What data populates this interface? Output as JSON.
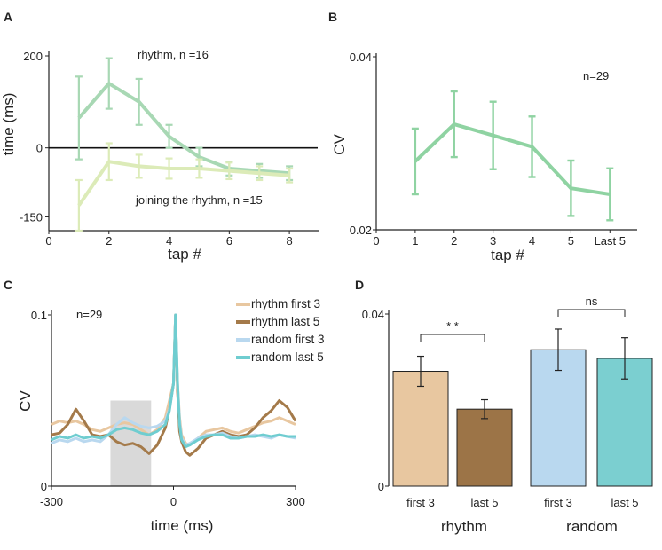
{
  "chart_data": [
    {
      "panel": "A",
      "type": "line",
      "xlabel": "tap #",
      "ylabel": "time (ms)",
      "xlim": [
        0,
        9
      ],
      "ylim": [
        -180,
        200
      ],
      "x_ticks": [
        "0",
        "2",
        "4",
        "6",
        "8"
      ],
      "x_tick_values": [
        0,
        2,
        4,
        6,
        8
      ],
      "y_ticks": [
        "200",
        "0",
        "-150"
      ],
      "y_tick_values": [
        200,
        0,
        -150
      ],
      "reference_line": 0,
      "series": [
        {
          "name": "rhythm, n =16",
          "color": "#a8d8b4",
          "x": [
            1,
            2,
            3,
            4,
            5,
            6,
            7,
            8
          ],
          "y": [
            65,
            140,
            100,
            25,
            -20,
            -45,
            -50,
            -55
          ],
          "err": [
            90,
            55,
            50,
            25,
            20,
            15,
            15,
            15
          ]
        },
        {
          "name": "joining the rhythm, n =15",
          "color": "#dcebb8",
          "x": [
            1,
            2,
            3,
            4,
            5,
            6,
            7,
            8
          ],
          "y": [
            -125,
            -30,
            -40,
            -45,
            -45,
            -50,
            -55,
            -60
          ],
          "err": [
            55,
            40,
            25,
            22,
            20,
            18,
            15,
            15
          ]
        }
      ]
    },
    {
      "panel": "B",
      "type": "line",
      "xlabel": "tap #",
      "ylabel": "CV",
      "annotation": "n=29",
      "ylim": [
        0.02,
        0.04
      ],
      "y_ticks": [
        "0.04",
        "0.02"
      ],
      "y_tick_values": [
        0.04,
        0.02
      ],
      "x_ticks": [
        "0",
        "1",
        "2",
        "3",
        "4",
        "5",
        "Last 5"
      ],
      "x_tick_values": [
        0,
        1,
        2,
        3,
        4,
        5,
        6
      ],
      "xlim": [
        0,
        6.7
      ],
      "color": "#8fd3a2",
      "x": [
        1,
        2,
        3,
        4,
        5,
        6
      ],
      "y": [
        0.0279,
        0.0322,
        0.0309,
        0.0296,
        0.0248,
        0.0241
      ],
      "err": [
        0.0038,
        0.0038,
        0.0039,
        0.0035,
        0.0032,
        0.003
      ]
    },
    {
      "panel": "C",
      "type": "line",
      "xlabel": "time (ms)",
      "ylabel": "CV",
      "annotation": "n=29",
      "xlim": [
        -300,
        300
      ],
      "ylim": [
        0,
        0.1
      ],
      "x_ticks": [
        "-300",
        "0",
        "300"
      ],
      "x_tick_values": [
        -300,
        0,
        300
      ],
      "y_ticks": [
        "0.1",
        "0"
      ],
      "y_tick_values": [
        0.1,
        0
      ],
      "shaded_window": [
        -155,
        -55
      ],
      "series": [
        {
          "name": "rhythm first 3",
          "color": "#e8c7a0",
          "x": [
            -300,
            -280,
            -260,
            -240,
            -220,
            -200,
            -180,
            -160,
            -140,
            -120,
            -100,
            -80,
            -60,
            -40,
            -20,
            -10,
            0,
            5,
            10,
            15,
            20,
            30,
            40,
            60,
            80,
            100,
            120,
            140,
            160,
            180,
            200,
            220,
            240,
            260,
            280,
            300
          ],
          "y": [
            0.036,
            0.038,
            0.037,
            0.038,
            0.036,
            0.033,
            0.032,
            0.034,
            0.036,
            0.037,
            0.036,
            0.033,
            0.03,
            0.033,
            0.04,
            0.05,
            0.06,
            0.1,
            0.06,
            0.04,
            0.03,
            0.025,
            0.024,
            0.028,
            0.032,
            0.033,
            0.034,
            0.032,
            0.031,
            0.033,
            0.035,
            0.037,
            0.038,
            0.04,
            0.038,
            0.036
          ]
        },
        {
          "name": "rhythm last 5",
          "color": "#a47a4a",
          "x": [
            -300,
            -280,
            -260,
            -240,
            -220,
            -200,
            -180,
            -160,
            -140,
            -120,
            -100,
            -80,
            -60,
            -40,
            -20,
            -10,
            0,
            5,
            10,
            15,
            20,
            30,
            40,
            60,
            80,
            100,
            120,
            140,
            160,
            180,
            200,
            220,
            240,
            260,
            280,
            300
          ],
          "y": [
            0.03,
            0.031,
            0.036,
            0.045,
            0.038,
            0.03,
            0.029,
            0.03,
            0.026,
            0.024,
            0.025,
            0.023,
            0.019,
            0.024,
            0.034,
            0.045,
            0.06,
            0.1,
            0.055,
            0.032,
            0.026,
            0.02,
            0.018,
            0.022,
            0.028,
            0.03,
            0.032,
            0.03,
            0.029,
            0.03,
            0.034,
            0.04,
            0.044,
            0.05,
            0.046,
            0.038
          ]
        },
        {
          "name": "random first 3",
          "color": "#b9d8ef",
          "x": [
            -300,
            -280,
            -260,
            -240,
            -220,
            -200,
            -180,
            -160,
            -140,
            -120,
            -100,
            -80,
            -60,
            -40,
            -20,
            -10,
            0,
            5,
            10,
            15,
            20,
            30,
            40,
            60,
            80,
            100,
            120,
            140,
            160,
            180,
            200,
            220,
            240,
            260,
            280,
            300
          ],
          "y": [
            0.025,
            0.027,
            0.026,
            0.028,
            0.026,
            0.027,
            0.026,
            0.03,
            0.036,
            0.04,
            0.037,
            0.035,
            0.034,
            0.035,
            0.038,
            0.045,
            0.06,
            0.1,
            0.06,
            0.038,
            0.028,
            0.024,
            0.025,
            0.028,
            0.03,
            0.03,
            0.031,
            0.029,
            0.028,
            0.029,
            0.03,
            0.029,
            0.028,
            0.03,
            0.029,
            0.028
          ]
        },
        {
          "name": "random last 5",
          "color": "#6fcdd0",
          "x": [
            -300,
            -280,
            -260,
            -240,
            -220,
            -200,
            -180,
            -160,
            -140,
            -120,
            -100,
            -80,
            -60,
            -40,
            -20,
            -10,
            0,
            5,
            10,
            15,
            20,
            30,
            40,
            60,
            80,
            100,
            120,
            140,
            160,
            180,
            200,
            220,
            240,
            260,
            280,
            300
          ],
          "y": [
            0.027,
            0.029,
            0.028,
            0.03,
            0.028,
            0.029,
            0.028,
            0.03,
            0.033,
            0.034,
            0.033,
            0.031,
            0.03,
            0.032,
            0.036,
            0.044,
            0.06,
            0.1,
            0.06,
            0.036,
            0.027,
            0.023,
            0.024,
            0.027,
            0.029,
            0.03,
            0.03,
            0.028,
            0.028,
            0.029,
            0.029,
            0.03,
            0.029,
            0.03,
            0.029,
            0.029
          ]
        }
      ]
    },
    {
      "panel": "D",
      "type": "bar",
      "ylabel": "",
      "ylim": [
        0,
        0.04
      ],
      "y_ticks": [
        "0.04",
        "0"
      ],
      "y_tick_values": [
        0.04,
        0
      ],
      "categories": [
        "first 3",
        "last 5",
        "first 3",
        "last 5"
      ],
      "groups": [
        "rhythm",
        "random"
      ],
      "values": [
        0.0267,
        0.0179,
        0.0317,
        0.0297
      ],
      "err": [
        0.0035,
        0.0022,
        0.0048,
        0.0048
      ],
      "colors": [
        "#e8c7a0",
        "#9c7447",
        "#b9d8ef",
        "#7bcfd0"
      ],
      "significance": [
        {
          "pair": [
            0,
            1
          ],
          "label": "* *"
        },
        {
          "pair": [
            2,
            3
          ],
          "label": "ns"
        }
      ]
    }
  ],
  "panels": {
    "A": "A",
    "B": "B",
    "C": "C",
    "D": "D"
  }
}
